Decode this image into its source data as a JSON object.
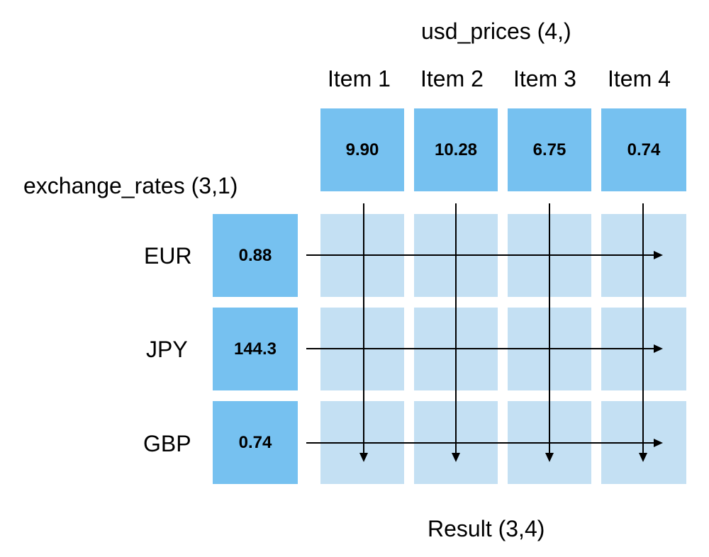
{
  "usd_prices": {
    "title": "usd_prices (4,)",
    "items": [
      "Item 1",
      "Item 2",
      "Item 3",
      "Item 4"
    ],
    "values": [
      "9.90",
      "10.28",
      "6.75",
      "0.74"
    ]
  },
  "exchange_rates": {
    "title": "exchange_rates (3,1)",
    "currencies": [
      "EUR",
      "JPY",
      "GBP"
    ],
    "values": [
      "0.88",
      "144.3",
      "0.74"
    ]
  },
  "result": {
    "title": "Result (3,4)"
  },
  "colors": {
    "input_cell": "#76c1f0",
    "result_cell": "#c4e0f3",
    "arrow": "#000000"
  }
}
